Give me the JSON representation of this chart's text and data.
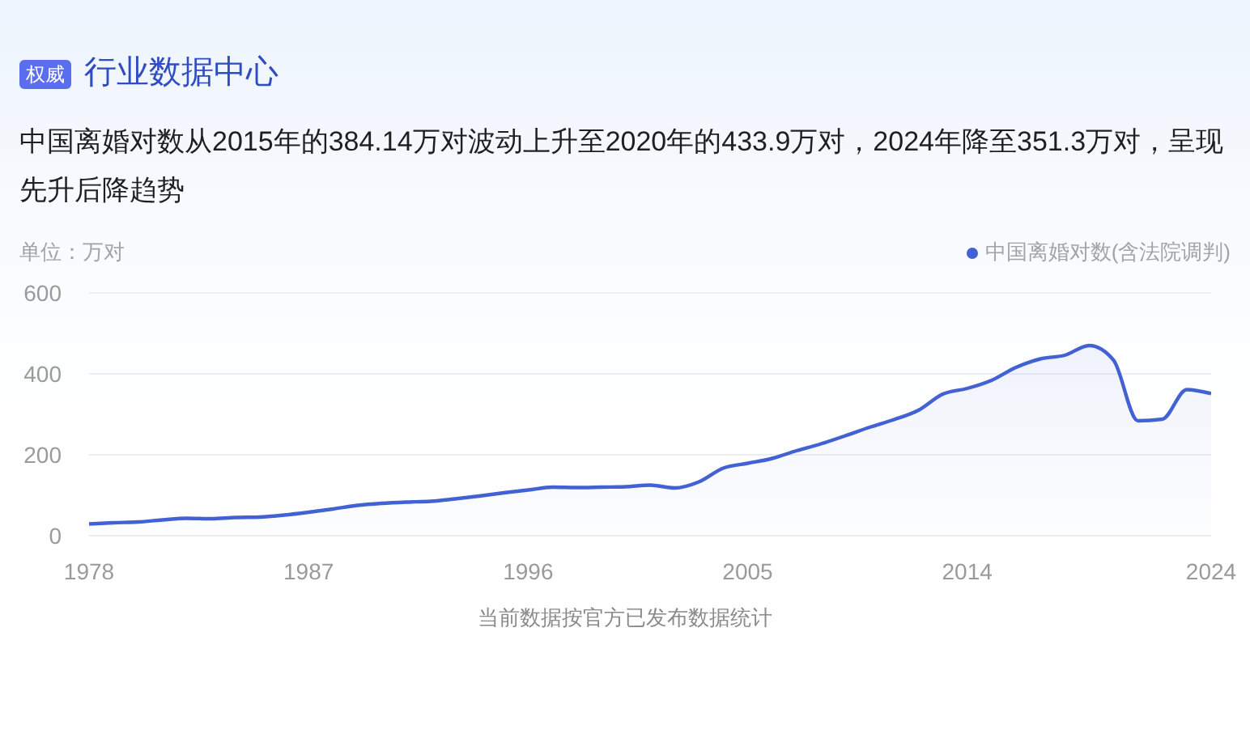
{
  "chart_data": {
    "type": "area",
    "title": "行业数据中心",
    "subtitle": "中国离婚对数从2015年的384.14万对波动上升至2020年的433.9万对，2024年降至351.3万对，呈现先升后降趋势",
    "ylabel": "单位：万对",
    "annotations": [
      "权威",
      "当前数据按官方已发布数据统计"
    ],
    "x": [
      1978,
      1979,
      1980,
      1981,
      1982,
      1983,
      1984,
      1985,
      1986,
      1987,
      1988,
      1989,
      1990,
      1991,
      1992,
      1993,
      1994,
      1995,
      1996,
      1997,
      1998,
      1999,
      2000,
      2001,
      2002,
      2003,
      2004,
      2005,
      2006,
      2007,
      2008,
      2009,
      2010,
      2011,
      2012,
      2013,
      2014,
      2015,
      2016,
      2017,
      2018,
      2019,
      2020,
      2021,
      2022,
      2023,
      2024
    ],
    "series": [
      {
        "name": "中国离婚对数(含法院调判)",
        "color": "#4262d4",
        "values": [
          29,
          32,
          34,
          39,
          43,
          42,
          45,
          46,
          51,
          58,
          66,
          75,
          80,
          83,
          85,
          91,
          98,
          106,
          113,
          120,
          119,
          120,
          121,
          125,
          118,
          133,
          167,
          179,
          191,
          210,
          227,
          247,
          268,
          287,
          310,
          350,
          364,
          384.14,
          416,
          437,
          446,
          470,
          433.9,
          284,
          288,
          361,
          351.3
        ]
      }
    ],
    "xlim": [
      1978,
      2024
    ],
    "xticks": [
      1978,
      1987,
      1996,
      2005,
      2014,
      2024
    ],
    "ylim": [
      0,
      600
    ],
    "yticks": [
      0,
      200,
      400,
      600
    ],
    "grid": "y",
    "legend": "top right"
  }
}
